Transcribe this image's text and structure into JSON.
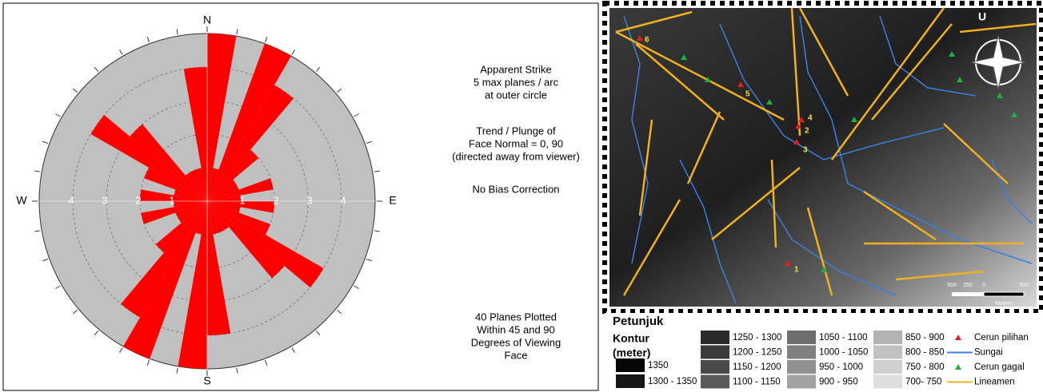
{
  "chart_data": {
    "type": "rose",
    "directions": [
      "N",
      "E",
      "S",
      "W"
    ],
    "x": [
      0,
      10,
      20,
      30,
      40,
      50,
      60,
      70,
      80,
      90,
      100,
      110,
      120,
      130,
      140,
      150,
      160,
      170,
      180,
      190,
      200,
      210,
      220,
      230,
      240,
      250,
      260,
      270,
      280,
      290,
      300,
      310,
      320,
      330,
      340,
      350
    ],
    "values": [
      5,
      1,
      5,
      4,
      2,
      1,
      1,
      2,
      1,
      2,
      1,
      2,
      4,
      3,
      1,
      1,
      1,
      4,
      5,
      1,
      5,
      4,
      2,
      1,
      1,
      2,
      1,
      2,
      1,
      2,
      4,
      3,
      1,
      1,
      1,
      4
    ],
    "color": "#ff0000",
    "rlim": [
      0,
      5
    ],
    "rticks": [
      1,
      2,
      3,
      4
    ],
    "grid": true,
    "annotations": [
      [
        "Apparent Strike",
        "5 max planes / arc",
        "at outer circle"
      ],
      [
        "Trend / Plunge of",
        "Face Normal =  0, 90",
        "(directed away from viewer)"
      ],
      [
        "No Bias Correction"
      ],
      [
        "40 Planes Plotted",
        "Within 45 and 90",
        "Degrees of Viewing",
        "Face"
      ]
    ]
  },
  "map": {
    "north": "U",
    "scale_labels": [
      "500",
      "250",
      "0",
      "500"
    ],
    "scale_unit": "Meters",
    "point_labels": [
      "1",
      "2",
      "3",
      "4",
      "5",
      "6"
    ],
    "legend": {
      "title": "Petunjuk",
      "contour_title": "Kontur",
      "contour_unit": "(meter)",
      "contours": [
        {
          "label": "1350",
          "color": "#050505"
        },
        {
          "label": "1300 - 1350",
          "color": "#151515"
        },
        {
          "label": "1250 - 1300",
          "color": "#2b2b2b"
        },
        {
          "label": "1200 - 1250",
          "color": "#3a3a3a"
        },
        {
          "label": "1150 - 1200",
          "color": "#4a4a4a"
        },
        {
          "label": "1100 - 1150",
          "color": "#5a5a5a"
        },
        {
          "label": "1050 - 1100",
          "color": "#6e6e6e"
        },
        {
          "label": "1000 - 1050",
          "color": "#808080"
        },
        {
          "label": "950 - 1000",
          "color": "#919191"
        },
        {
          "label": "900 - 950",
          "color": "#a2a2a2"
        },
        {
          "label": "850 - 900",
          "color": "#b3b3b3"
        },
        {
          "label": "800 - 850",
          "color": "#c2c2c2"
        },
        {
          "label": "750 - 800",
          "color": "#d0d0d0"
        },
        {
          "label": "700- 750",
          "color": "#dedede"
        }
      ],
      "symbols": [
        {
          "label": "Cerun pilihan",
          "shape": "triangle",
          "color": "#e02020"
        },
        {
          "label": "Sungai",
          "shape": "line",
          "color": "#3a7fe0"
        },
        {
          "label": "Cerun gagal",
          "shape": "triangle",
          "color": "#20b040"
        },
        {
          "label": "Lineamen",
          "shape": "line",
          "color": "#f0b020"
        }
      ]
    }
  }
}
